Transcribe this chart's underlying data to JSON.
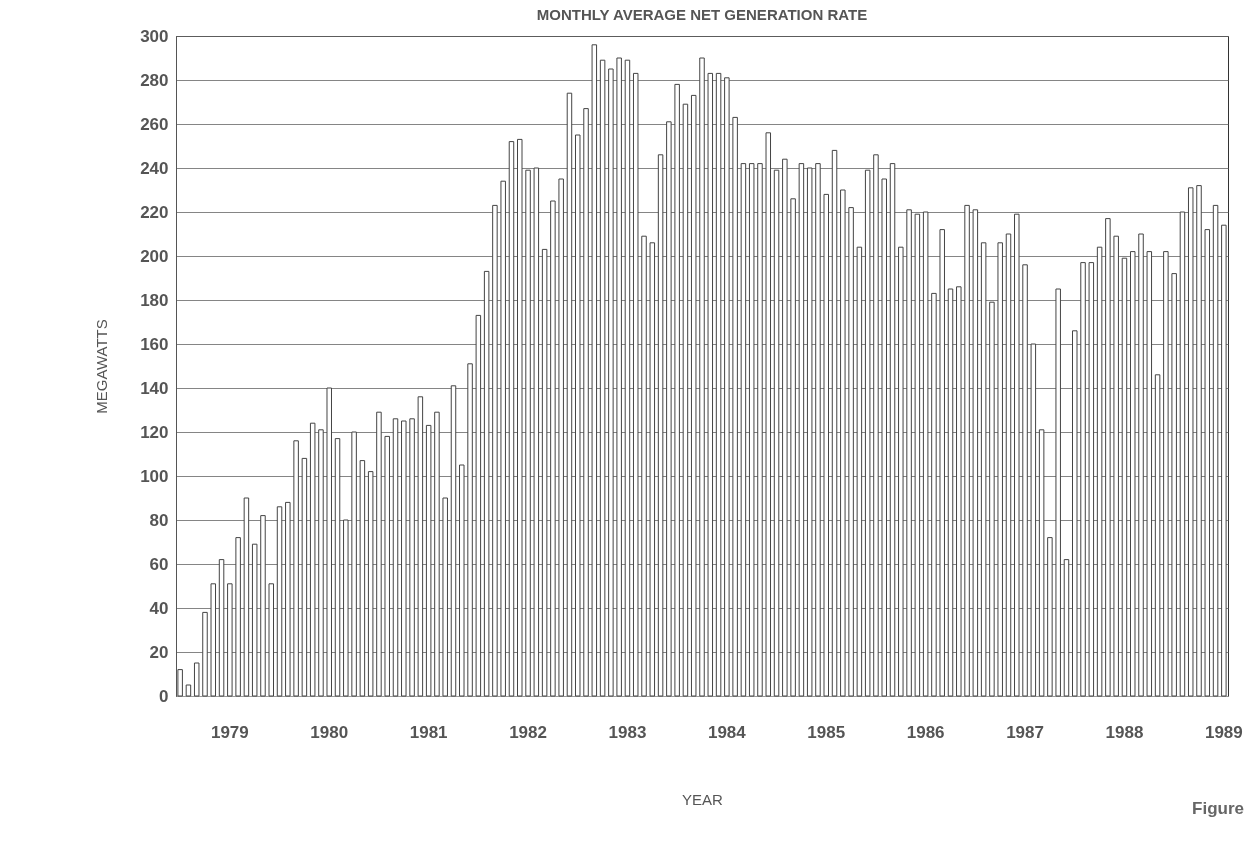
{
  "chart_data": {
    "type": "bar",
    "title": "MONTHLY AVERAGE NET GENERATION RATE",
    "xlabel": "YEAR",
    "ylabel": "MEGAWATTS",
    "annotations": [
      "Figure"
    ],
    "categories": [
      null,
      null,
      null,
      null,
      null,
      null,
      "1979",
      null,
      null,
      null,
      null,
      null,
      null,
      null,
      null,
      null,
      null,
      null,
      "1980",
      null,
      null,
      null,
      null,
      null,
      null,
      null,
      null,
      null,
      null,
      null,
      "1981",
      null,
      null,
      null,
      null,
      null,
      null,
      null,
      null,
      null,
      null,
      null,
      "1982",
      null,
      null,
      null,
      null,
      null,
      null,
      null,
      null,
      null,
      null,
      null,
      "1983",
      null,
      null,
      null,
      null,
      null,
      null,
      null,
      null,
      null,
      null,
      null,
      "1984",
      null,
      null,
      null,
      null,
      null,
      null,
      null,
      null,
      null,
      null,
      null,
      "1985",
      null,
      null,
      null,
      null,
      null,
      null,
      null,
      null,
      null,
      null,
      null,
      "1986",
      null,
      null,
      null,
      null,
      null,
      null,
      null,
      null,
      null,
      null,
      null,
      "1987",
      null,
      null,
      null,
      null,
      null,
      null,
      null,
      null,
      null,
      null,
      null,
      "1988",
      null,
      null,
      null,
      null,
      null,
      null,
      null,
      null,
      null,
      null,
      null,
      "1989"
    ],
    "values": [
      12,
      5,
      15,
      38,
      51,
      62,
      51,
      72,
      90,
      69,
      82,
      51,
      86,
      88,
      116,
      108,
      124,
      121,
      140,
      117,
      80,
      120,
      107,
      102,
      129,
      118,
      126,
      125,
      126,
      136,
      123,
      129,
      90,
      141,
      105,
      151,
      173,
      193,
      223,
      234,
      252,
      253,
      239,
      240,
      203,
      225,
      235,
      274,
      255,
      267,
      296,
      289,
      285,
      290,
      289,
      283,
      209,
      206,
      246,
      261,
      278,
      269,
      273,
      290,
      283,
      283,
      281,
      263,
      242,
      242,
      242,
      256,
      239,
      244,
      226,
      242,
      240,
      242,
      228,
      248,
      230,
      222,
      204,
      239,
      246,
      235,
      242,
      204,
      221,
      219,
      220,
      183,
      212,
      185,
      186,
      223,
      221,
      206,
      179,
      206,
      210,
      219,
      196,
      160,
      121,
      72,
      185,
      62,
      166,
      197,
      197,
      204,
      217,
      209,
      199,
      202,
      210,
      202,
      146,
      202,
      192,
      220,
      231,
      232,
      212,
      223,
      214
    ],
    "color": "#ffffff",
    "ylim": [
      0,
      300
    ],
    "yticks": [
      0,
      20,
      40,
      60,
      80,
      100,
      120,
      140,
      160,
      180,
      200,
      220,
      240,
      260,
      280,
      300
    ],
    "grid": "y"
  }
}
